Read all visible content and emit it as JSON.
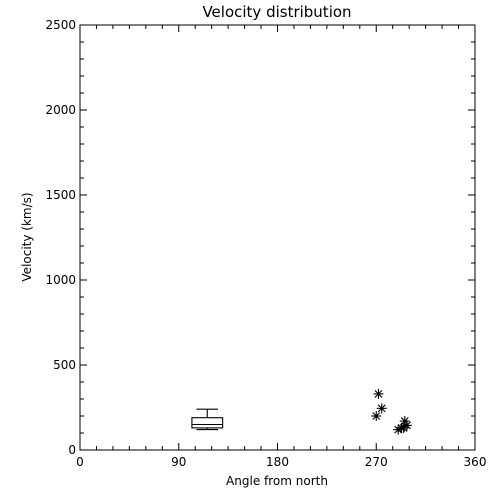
{
  "chart_data": {
    "type": "scatter",
    "title": "Velocity distribution",
    "xlabel": "Angle from north",
    "ylabel": "Velocity (km/s)",
    "xlim": [
      0,
      360
    ],
    "ylim": [
      0,
      2500
    ],
    "xticks": [
      0,
      90,
      180,
      270,
      360
    ],
    "yticks": [
      0,
      500,
      1000,
      1500,
      2000,
      2500
    ],
    "grid": false,
    "legend": "none",
    "box": {
      "x_range": [
        102,
        130
      ],
      "whisker_low": 120,
      "q1": 130,
      "median": 150,
      "q3": 190,
      "whisker_high": 240
    },
    "points": [
      {
        "x": 272,
        "y": 330
      },
      {
        "x": 275,
        "y": 245
      },
      {
        "x": 270,
        "y": 200
      },
      {
        "x": 290,
        "y": 120
      },
      {
        "x": 293,
        "y": 130
      },
      {
        "x": 296,
        "y": 170
      },
      {
        "x": 298,
        "y": 145
      },
      {
        "x": 295,
        "y": 130
      }
    ]
  }
}
